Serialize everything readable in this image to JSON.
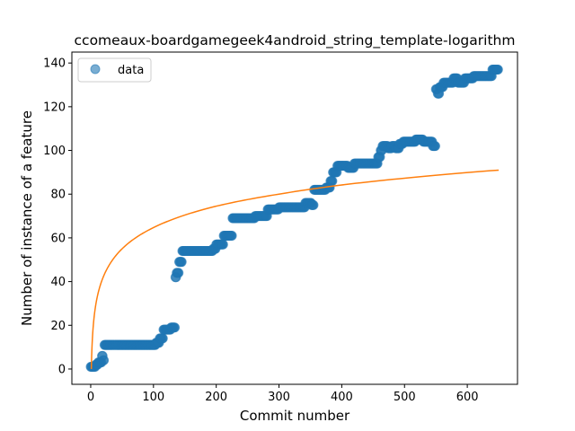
{
  "chart_data": {
    "type": "scatter",
    "title": "ccomeaux-boardgamegeek4android_string_template-logarithm",
    "xlabel": "Commit number",
    "ylabel": "Number of instance of a feature",
    "xlim": [
      -30,
      680
    ],
    "ylim": [
      -7,
      145
    ],
    "xticks": [
      0,
      100,
      200,
      300,
      400,
      500,
      600
    ],
    "yticks": [
      0,
      20,
      40,
      60,
      80,
      100,
      120,
      140
    ],
    "grid": false,
    "legend": {
      "placement": "top-left",
      "entries": [
        "data"
      ]
    },
    "colors": {
      "data": "#1f77b4",
      "fit": "#ff7f0e"
    },
    "series": [
      {
        "name": "data",
        "kind": "scatter",
        "segments": [
          [
            0,
            8,
            1
          ],
          [
            8,
            12,
            2
          ],
          [
            12,
            18,
            3
          ],
          [
            18,
            20,
            6
          ],
          [
            20,
            22,
            4
          ],
          [
            22,
            104,
            11
          ],
          [
            104,
            110,
            12
          ],
          [
            110,
            116,
            14
          ],
          [
            116,
            128,
            18
          ],
          [
            128,
            135,
            19
          ],
          [
            135,
            137,
            42
          ],
          [
            137,
            141,
            44
          ],
          [
            141,
            146,
            49
          ],
          [
            146,
            195,
            54
          ],
          [
            195,
            200,
            55
          ],
          [
            200,
            212,
            57
          ],
          [
            212,
            226,
            61
          ],
          [
            226,
            262,
            69
          ],
          [
            262,
            282,
            70
          ],
          [
            282,
            295,
            73
          ],
          [
            295,
            300,
            73
          ],
          [
            300,
            342,
            74
          ],
          [
            342,
            352,
            76
          ],
          [
            352,
            356,
            75
          ],
          [
            356,
            365,
            82
          ],
          [
            365,
            375,
            82
          ],
          [
            375,
            382,
            83
          ],
          [
            382,
            386,
            86
          ],
          [
            386,
            393,
            90
          ],
          [
            393,
            398,
            93
          ],
          [
            398,
            410,
            93
          ],
          [
            410,
            420,
            92
          ],
          [
            420,
            450,
            94
          ],
          [
            450,
            458,
            94
          ],
          [
            458,
            462,
            97
          ],
          [
            462,
            465,
            100
          ],
          [
            465,
            474,
            102
          ],
          [
            474,
            480,
            101
          ],
          [
            480,
            486,
            102
          ],
          [
            486,
            492,
            101
          ],
          [
            492,
            498,
            103
          ],
          [
            498,
            518,
            104
          ],
          [
            518,
            530,
            105
          ],
          [
            530,
            545,
            104
          ],
          [
            545,
            550,
            102
          ],
          [
            550,
            553,
            128
          ],
          [
            553,
            556,
            126
          ],
          [
            556,
            562,
            129
          ],
          [
            562,
            578,
            131
          ],
          [
            578,
            585,
            133
          ],
          [
            585,
            596,
            131
          ],
          [
            596,
            610,
            133
          ],
          [
            610,
            640,
            134
          ],
          [
            640,
            650,
            137
          ]
        ]
      },
      {
        "name": "",
        "kind": "line",
        "model": "logarithmic",
        "x_range": [
          1,
          650
        ],
        "points": [
          [
            1,
            0
          ],
          [
            2,
            9.7
          ],
          [
            5,
            22.6
          ],
          [
            10,
            32.4
          ],
          [
            20,
            42.1
          ],
          [
            50,
            55
          ],
          [
            100,
            64.7
          ],
          [
            200,
            74.5
          ],
          [
            300,
            80
          ],
          [
            400,
            84.2
          ],
          [
            500,
            87.3
          ],
          [
            600,
            89.9
          ],
          [
            650,
            91
          ]
        ]
      }
    ]
  }
}
